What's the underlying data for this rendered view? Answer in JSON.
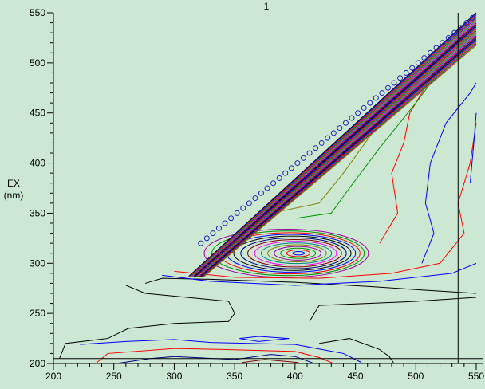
{
  "chart_data": {
    "type": "contour",
    "title": "1",
    "xlabel": "",
    "ylabel": "EX\n(nm)",
    "ylabel_lines": [
      "EX",
      "(nm)"
    ],
    "xlim": [
      200,
      550
    ],
    "ylim": [
      200,
      550
    ],
    "xticks": [
      200,
      250,
      300,
      350,
      400,
      450,
      500,
      550
    ],
    "yticks": [
      200,
      250,
      300,
      350,
      400,
      450,
      500,
      550
    ],
    "grid": false,
    "background": "#cde8d2",
    "cursor": {
      "x": 535,
      "y": 205
    },
    "palette": [
      "#000000",
      "#0000ff",
      "#ff0000",
      "#009000",
      "#a000a0",
      "#808000",
      "#008080",
      "#ff00ff",
      "#800000",
      "#000080"
    ],
    "peak": {
      "ex": 310,
      "em": 403,
      "rings": 14,
      "rx_max": 68,
      "ry_max": 24
    },
    "diagonal": {
      "lines": 26,
      "from_x": 312,
      "to_x": 550,
      "marker_step": 5
    },
    "contours": [
      {
        "color": "#000000",
        "points": [
          [
            276,
            280
          ],
          [
            290,
            285
          ],
          [
            330,
            284
          ],
          [
            400,
            281
          ],
          [
            460,
            277
          ],
          [
            510,
            273
          ],
          [
            550,
            270
          ]
        ]
      },
      {
        "color": "#000000",
        "points": [
          [
            205,
            205
          ],
          [
            210,
            220
          ],
          [
            245,
            225
          ],
          [
            262,
            235
          ],
          [
            300,
            240
          ],
          [
            345,
            242
          ],
          [
            350,
            250
          ],
          [
            345,
            262
          ],
          [
            276,
            270
          ],
          [
            260,
            278
          ]
        ]
      },
      {
        "color": "#000000",
        "points": [
          [
            412,
            242
          ],
          [
            420,
            258
          ],
          [
            460,
            260
          ],
          [
            500,
            262
          ],
          [
            550,
            266
          ]
        ]
      },
      {
        "color": "#000000",
        "points": [
          [
            420,
            220
          ],
          [
            445,
            225
          ],
          [
            470,
            214
          ],
          [
            478,
            207
          ],
          [
            482,
            200
          ]
        ]
      },
      {
        "color": "#0000ff",
        "points": [
          [
            222,
            219
          ],
          [
            260,
            222
          ],
          [
            300,
            224
          ],
          [
            330,
            221
          ],
          [
            400,
            219
          ],
          [
            440,
            210
          ],
          [
            455,
            201
          ]
        ]
      },
      {
        "color": "#0000ff",
        "points": [
          [
            354,
            225
          ],
          [
            370,
            227
          ],
          [
            395,
            225
          ],
          [
            370,
            222
          ],
          [
            354,
            225
          ]
        ]
      },
      {
        "color": "#ff0000",
        "points": [
          [
            235,
            200
          ],
          [
            245,
            210
          ],
          [
            300,
            215
          ],
          [
            340,
            214
          ],
          [
            400,
            212
          ],
          [
            420,
            206
          ],
          [
            432,
            200
          ]
        ]
      },
      {
        "color": "#000080",
        "points": [
          [
            252,
            200
          ],
          [
            280,
            205
          ],
          [
            300,
            207
          ],
          [
            350,
            204
          ],
          [
            380,
            209
          ],
          [
            400,
            207
          ],
          [
            416,
            200
          ]
        ]
      },
      {
        "color": "#800000",
        "points": [
          [
            356,
            201
          ],
          [
            375,
            204
          ],
          [
            403,
            201
          ]
        ]
      },
      {
        "color": "#0000ff",
        "points": [
          [
            290,
            288
          ],
          [
            330,
            282
          ],
          [
            400,
            278
          ],
          [
            470,
            282
          ],
          [
            530,
            290
          ],
          [
            550,
            300
          ]
        ]
      },
      {
        "color": "#ff0000",
        "points": [
          [
            300,
            292
          ],
          [
            350,
            286
          ],
          [
            420,
            285
          ],
          [
            480,
            290
          ],
          [
            520,
            300
          ],
          [
            540,
            330
          ],
          [
            535,
            360
          ],
          [
            545,
            400
          ],
          [
            550,
            440
          ]
        ]
      },
      {
        "color": "#0000ff",
        "points": [
          [
            505,
            300
          ],
          [
            515,
            330
          ],
          [
            508,
            360
          ],
          [
            512,
            400
          ],
          [
            525,
            440
          ],
          [
            545,
            470
          ],
          [
            550,
            480
          ]
        ]
      },
      {
        "color": "#ff0000",
        "points": [
          [
            470,
            320
          ],
          [
            485,
            350
          ],
          [
            480,
            390
          ],
          [
            490,
            420
          ],
          [
            495,
            450
          ],
          [
            515,
            490
          ],
          [
            540,
            530
          ]
        ]
      },
      {
        "color": "#009000",
        "points": [
          [
            401,
            345
          ],
          [
            430,
            350
          ],
          [
            445,
            375
          ],
          [
            470,
            415
          ],
          [
            500,
            460
          ],
          [
            525,
            500
          ]
        ]
      },
      {
        "color": "#808000",
        "points": [
          [
            380,
            350
          ],
          [
            420,
            360
          ],
          [
            440,
            390
          ],
          [
            470,
            440
          ],
          [
            505,
            490
          ]
        ]
      },
      {
        "color": "#0000ff",
        "points": [
          [
            545,
            380
          ],
          [
            548,
            420
          ],
          [
            550,
            450
          ]
        ]
      }
    ]
  }
}
